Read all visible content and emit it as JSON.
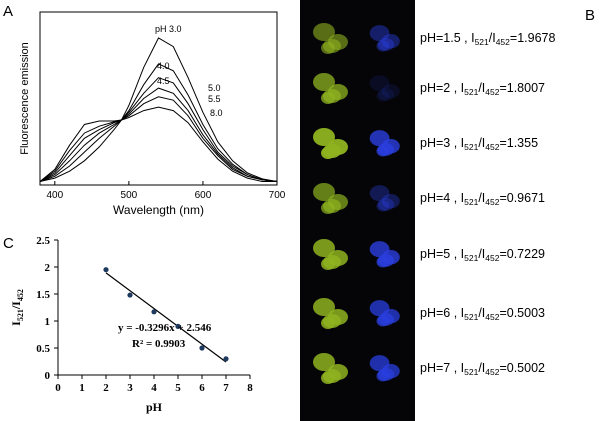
{
  "chart_data": [
    {
      "type": "line",
      "panel_label": "A",
      "xlabel": "Wavelength (nm)",
      "ylabel": "Fluorescence emission",
      "x": [
        380,
        400,
        420,
        440,
        460,
        480,
        490,
        500,
        520,
        540,
        560,
        580,
        600,
        620,
        640,
        660,
        680,
        700
      ],
      "xlim": [
        380,
        700
      ],
      "xticks": [
        400,
        500,
        600,
        700
      ],
      "ylim": [
        0,
        1
      ],
      "series": [
        {
          "name": "pH 3.0",
          "color": "#000000",
          "values": [
            0.02,
            0.04,
            0.08,
            0.14,
            0.22,
            0.32,
            0.376,
            0.46,
            0.68,
            0.85,
            0.8,
            0.62,
            0.42,
            0.25,
            0.14,
            0.07,
            0.035,
            0.02
          ]
        },
        {
          "name": "4.0",
          "color": "#000000",
          "values": [
            0.02,
            0.05,
            0.11,
            0.19,
            0.27,
            0.34,
            0.376,
            0.43,
            0.58,
            0.7,
            0.66,
            0.52,
            0.35,
            0.21,
            0.12,
            0.06,
            0.03,
            0.02
          ]
        },
        {
          "name": "4.5",
          "color": "#000000",
          "values": [
            0.02,
            0.06,
            0.14,
            0.23,
            0.3,
            0.35,
            0.376,
            0.42,
            0.53,
            0.62,
            0.59,
            0.47,
            0.32,
            0.19,
            0.11,
            0.06,
            0.03,
            0.02
          ]
        },
        {
          "name": "5.0",
          "color": "#000000",
          "values": [
            0.02,
            0.07,
            0.17,
            0.27,
            0.32,
            0.36,
            0.376,
            0.41,
            0.5,
            0.56,
            0.53,
            0.43,
            0.29,
            0.18,
            0.1,
            0.05,
            0.03,
            0.02
          ]
        },
        {
          "name": "5.5",
          "color": "#000000",
          "values": [
            0.02,
            0.08,
            0.2,
            0.3,
            0.34,
            0.365,
            0.376,
            0.4,
            0.47,
            0.51,
            0.49,
            0.4,
            0.27,
            0.17,
            0.09,
            0.05,
            0.03,
            0.02
          ]
        },
        {
          "name": "8.0",
          "color": "#000000",
          "values": [
            0.02,
            0.09,
            0.23,
            0.35,
            0.37,
            0.37,
            0.376,
            0.39,
            0.43,
            0.45,
            0.43,
            0.36,
            0.25,
            0.15,
            0.08,
            0.04,
            0.02,
            0.02
          ]
        }
      ]
    },
    {
      "type": "scatter",
      "panel_label": "C",
      "xlabel": "pH",
      "ylabel_parts": [
        "I",
        "521",
        "/I",
        "452"
      ],
      "x": [
        2,
        3,
        4,
        5,
        6,
        7
      ],
      "values": [
        1.95,
        1.48,
        1.17,
        0.9,
        0.5,
        0.3
      ],
      "color": "#1f3a5f",
      "trend": {
        "x": [
          2,
          7
        ],
        "values": [
          1.89,
          0.24
        ]
      },
      "annotations": [
        "y = -0.3296x + 2.546",
        "R² = 0.9903"
      ],
      "xlim": [
        0,
        8
      ],
      "xticks": [
        0,
        1,
        2,
        3,
        4,
        5,
        6,
        7,
        8
      ],
      "ylim": [
        0,
        2.5
      ],
      "yticks": [
        0,
        0.5,
        1,
        1.5,
        2,
        2.5
      ]
    }
  ],
  "panel_b": {
    "panel_label": "B",
    "rows": [
      {
        "parts": [
          "pH=1.5 , I",
          "521",
          "/I",
          "452",
          "=1.9678"
        ]
      },
      {
        "parts": [
          "pH=2 , I",
          "521",
          "/I",
          "452",
          "=1.8007"
        ]
      },
      {
        "parts": [
          "pH=3 , I",
          "521",
          "/I",
          "452",
          "=1.355"
        ]
      },
      {
        "parts": [
          "pH=4 , I",
          "521",
          "/I",
          "452",
          "=0.9671"
        ]
      },
      {
        "parts": [
          "pH=5 , I",
          "521",
          "/I",
          "452",
          "=0.7229"
        ]
      },
      {
        "parts": [
          "pH=6 , I",
          "521",
          "/I",
          "452",
          "=0.5003"
        ]
      },
      {
        "parts": [
          "pH=7 , I",
          "521",
          "/I",
          "452",
          "=0.5002"
        ]
      }
    ]
  }
}
